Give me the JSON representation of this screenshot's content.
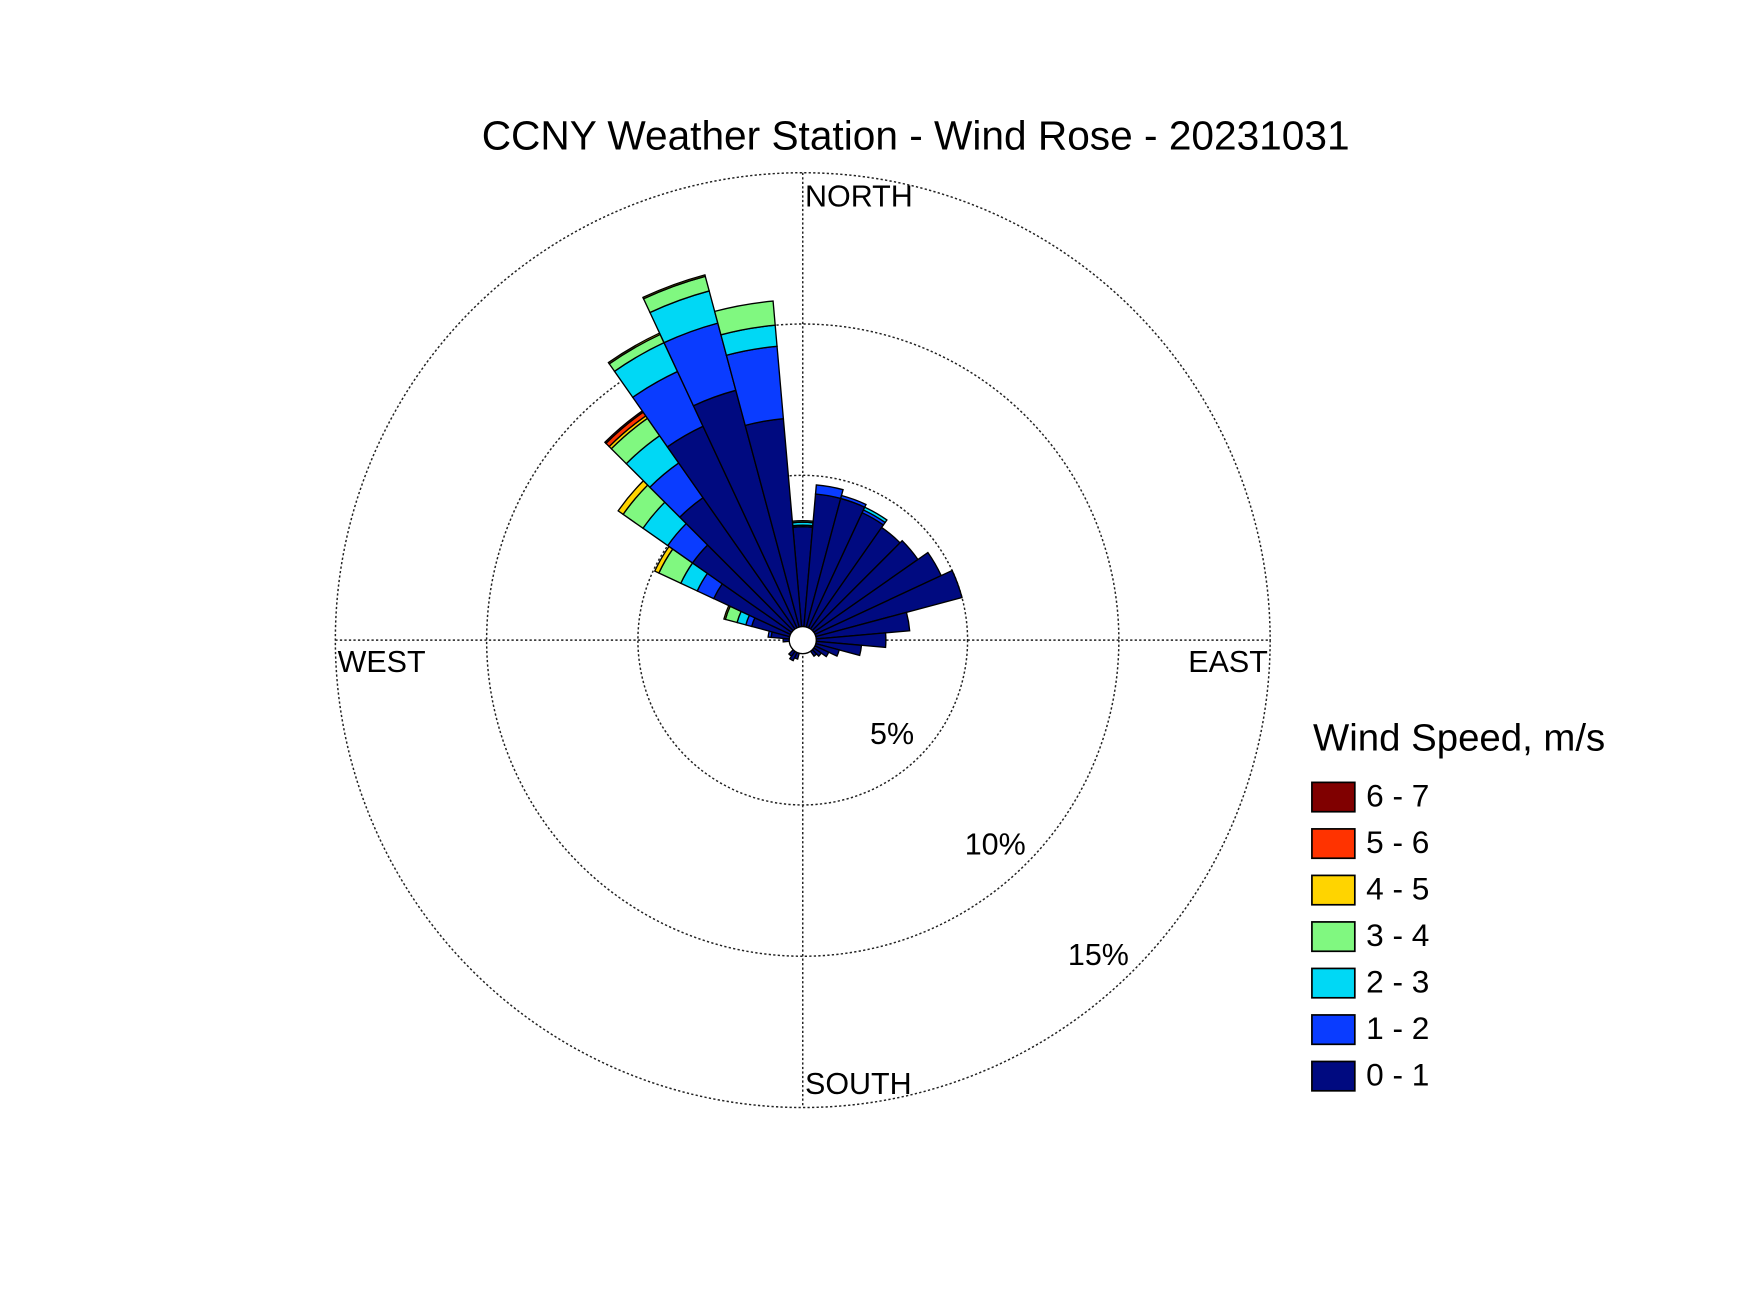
{
  "chart_data": {
    "type": "windrose",
    "title": "CCNY Weather Station - Wind Rose - 20231031",
    "direction_labels": {
      "north": "NORTH",
      "east": "EAST",
      "south": "SOUTH",
      "west": "WEST"
    },
    "legend_title": "Wind Speed, m/s",
    "x": [
      0,
      10,
      20,
      30,
      40,
      50,
      60,
      70,
      80,
      90,
      100,
      110,
      120,
      130,
      140,
      150,
      160,
      170,
      180,
      190,
      200,
      210,
      220,
      230,
      240,
      250,
      260,
      270,
      280,
      290,
      300,
      310,
      320,
      330,
      340,
      350
    ],
    "rlim": [
      0,
      15
    ],
    "rticks": [
      {
        "value": 5,
        "label": "5%"
      },
      {
        "value": 10,
        "label": "10%"
      },
      {
        "value": 15,
        "label": "15%"
      }
    ],
    "series": [
      {
        "name": "0 - 1",
        "color": "#000a80",
        "values": [
          3.3,
          4.4,
          4.4,
          4.2,
          4.1,
          4.2,
          4.6,
          5.0,
          3.1,
          2.3,
          1.5,
          0.8,
          0.5,
          0.3,
          0.2,
          0,
          0,
          0,
          0,
          0,
          0.2,
          0.3,
          0.2,
          0,
          0,
          0,
          0,
          0.2,
          0.6,
          1.3,
          2.8,
          4.0,
          5.3,
          7.35,
          8.1,
          6.9
        ]
      },
      {
        "name": "1 - 2",
        "color": "#0a3cff",
        "values": [
          0.05,
          0.3,
          0.1,
          0.1,
          0,
          0,
          0,
          0,
          0,
          0,
          0,
          0,
          0,
          0,
          0,
          0,
          0,
          0,
          0,
          0,
          0,
          0,
          0,
          0,
          0,
          0,
          0,
          0,
          0.1,
          0.2,
          0.6,
          1.0,
          1.4,
          2.0,
          2.3,
          2.4
        ]
      },
      {
        "name": "2 - 3",
        "color": "#00d8f5",
        "values": [
          0.1,
          0,
          0,
          0.1,
          0,
          0,
          0,
          0,
          0,
          0,
          0,
          0,
          0,
          0,
          0,
          0,
          0,
          0,
          0,
          0,
          0,
          0,
          0,
          0,
          0,
          0,
          0,
          0,
          0,
          0.3,
          0.6,
          1.0,
          1.1,
          1.05,
          1.1,
          0.7
        ]
      },
      {
        "name": "3 - 4",
        "color": "#80f880",
        "values": [
          0.05,
          0,
          0,
          0,
          0,
          0,
          0,
          0,
          0,
          0,
          0,
          0,
          0,
          0,
          0,
          0,
          0,
          0,
          0,
          0,
          0,
          0,
          0,
          0,
          0,
          0,
          0,
          0,
          0,
          0.4,
          0.8,
          0.8,
          0.7,
          0.3,
          0.5,
          0.8
        ]
      },
      {
        "name": "4 - 5",
        "color": "#ffd400",
        "values": [
          0,
          0,
          0,
          0,
          0,
          0,
          0,
          0,
          0,
          0,
          0,
          0,
          0,
          0,
          0,
          0,
          0,
          0,
          0,
          0,
          0,
          0,
          0,
          0,
          0,
          0,
          0,
          0,
          0,
          0.05,
          0.15,
          0.2,
          0.1,
          0.05,
          0.05,
          0
        ]
      },
      {
        "name": "5 - 6",
        "color": "#ff3300",
        "values": [
          0,
          0,
          0,
          0,
          0,
          0,
          0,
          0,
          0,
          0,
          0,
          0,
          0,
          0,
          0,
          0,
          0,
          0,
          0,
          0,
          0,
          0,
          0,
          0,
          0,
          0,
          0,
          0,
          0,
          0,
          0,
          0,
          0.15,
          0,
          0,
          0
        ]
      },
      {
        "name": "6 - 7",
        "color": "#800000",
        "values": [
          0,
          0,
          0,
          0,
          0,
          0,
          0,
          0,
          0,
          0,
          0,
          0,
          0,
          0,
          0,
          0,
          0,
          0,
          0,
          0,
          0,
          0,
          0,
          0,
          0,
          0,
          0,
          0,
          0,
          0,
          0,
          0,
          0.05,
          0,
          0,
          0
        ]
      }
    ]
  }
}
